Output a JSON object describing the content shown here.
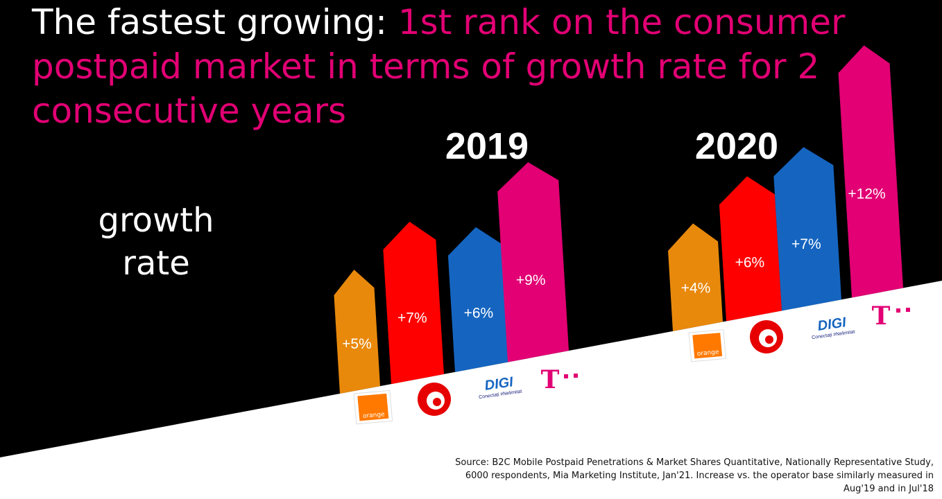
{
  "title": {
    "lead": "The fastest growing: ",
    "highlight": "1st rank on the consumer postpaid market in terms of growth rate for 2 consecutive years"
  },
  "metric_label_line1": "growth",
  "metric_label_line2": "rate",
  "source_note": "Source: B2C Mobile Postpaid Penetrations & Market Shares Quantitative, Nationally Representative Study, 6000 respondents, Mia Marketing Institute, Jan'21. Increase vs. the operator base similarly measured in Aug'19 and in Jul'18",
  "colors": {
    "background": "#000000",
    "floor": "#ffffff",
    "orange": "#e8890c",
    "vodafone": "#ff0000",
    "digi": "#1565c0",
    "telekom": "#e20074",
    "title_accent": "#e20074"
  },
  "chart_data": [
    {
      "type": "bar",
      "title": "2019",
      "categories": [
        "orange",
        "vodafone",
        "DIGI",
        "T"
      ],
      "values": [
        5,
        7,
        6,
        9
      ],
      "data_labels": [
        "+5%",
        "+7%",
        "+6%",
        "+9%"
      ],
      "unit": "%"
    },
    {
      "type": "bar",
      "title": "2020",
      "categories": [
        "orange",
        "vodafone",
        "DIGI",
        "T"
      ],
      "values": [
        4,
        6,
        7,
        12
      ],
      "data_labels": [
        "+4%",
        "+6%",
        "+7%",
        "+12%"
      ],
      "unit": "%"
    }
  ],
  "logos": {
    "orange": "orange",
    "digi_main": "DIGI",
    "digi_tagline": "Conectați #Nelimitat",
    "telekom": "T",
    "vodafone_icon": "vodafone-speechmark-icon"
  }
}
